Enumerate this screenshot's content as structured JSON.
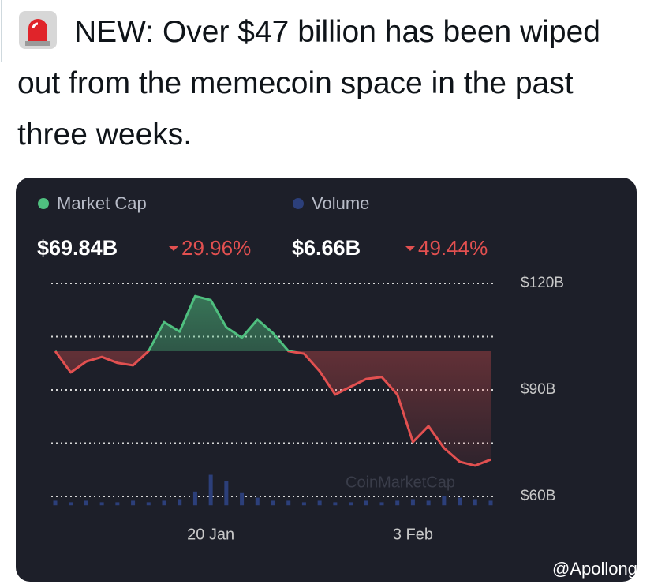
{
  "post": {
    "text": "NEW: Over $47 billion has been wiped out from the memecoin space in the past three weeks."
  },
  "credit": "@Apollong",
  "chart_data": {
    "type": "line",
    "stats": [
      {
        "value": "$69.84B",
        "change": "29.96%"
      },
      {
        "value": "$6.66B",
        "change": "49.44%"
      }
    ],
    "watermark": "CoinMarketCap",
    "categories": [
      null,
      null,
      null,
      null,
      null,
      null,
      null,
      null,
      null,
      null,
      "20 Jan",
      null,
      null,
      null,
      null,
      null,
      null,
      null,
      null,
      null,
      null,
      null,
      null,
      "3 Feb",
      null,
      null,
      null,
      null,
      null
    ],
    "series": [
      {
        "name": "Market Cap",
        "color": "#4fbf7f",
        "down_color": "#e25050",
        "values": [
          100.9,
          94.9,
          98.0,
          99.3,
          97.6,
          96.9,
          100.9,
          109.1,
          106.4,
          116.4,
          115.3,
          107.6,
          104.7,
          109.8,
          106.0,
          100.9,
          100.2,
          95.3,
          88.7,
          90.9,
          93.1,
          93.6,
          88.7,
          75.3,
          79.8,
          73.6,
          69.8,
          68.7,
          70.4
        ]
      },
      {
        "name": "Volume",
        "color": "#2c3f7a",
        "axis": "y2",
        "values": [
          3,
          2,
          3,
          2,
          2,
          3,
          2,
          3,
          4,
          9,
          20,
          16,
          8,
          5,
          3,
          3,
          2,
          3,
          2,
          2,
          3,
          2,
          3,
          4,
          3,
          6,
          5,
          4,
          3
        ]
      }
    ],
    "ylim": [
      57.5,
      122
    ],
    "yticks": [
      {
        "value": 60,
        "label": "$60B"
      },
      {
        "value": 75,
        "label": null
      },
      {
        "value": 90,
        "label": "$90B"
      },
      {
        "value": 105,
        "label": null
      },
      {
        "value": 120,
        "label": "$120B"
      }
    ],
    "y2lim": [
      0,
      150
    ],
    "grid": true
  }
}
